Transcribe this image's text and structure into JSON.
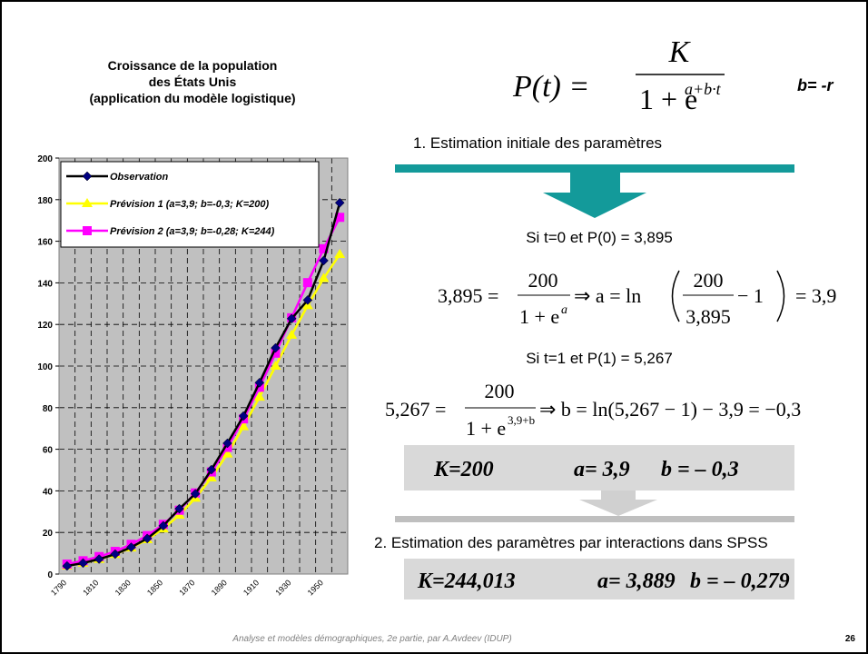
{
  "chart_data": {
    "type": "line",
    "title": [
      "Croissance de la population",
      "des États Unis",
      "(application du modèle logistique)"
    ],
    "categories": [
      "1790",
      null,
      "1810",
      null,
      "1830",
      null,
      "1850",
      null,
      "1870",
      null,
      "1890",
      null,
      "1910",
      null,
      "1930",
      null,
      "1950",
      null
    ],
    "series": [
      {
        "name": "Observation",
        "color": "#000080",
        "line_color": "#000000",
        "marker": "diamond",
        "values": [
          3.9,
          5.3,
          7.2,
          9.6,
          12.9,
          17.1,
          23.2,
          31.4,
          38.6,
          50.2,
          62.9,
          76.0,
          92.0,
          108.7,
          122.8,
          131.7,
          150.7,
          178.5
        ]
      },
      {
        "name": "Prévision 1 (a=3,9; b=-0,3; K=200)",
        "color": "#ffff00",
        "line_color": "#ffff00",
        "marker": "triangle",
        "values": [
          4.0,
          5.3,
          7.1,
          9.5,
          12.6,
          16.6,
          21.8,
          28.4,
          36.5,
          46.3,
          57.8,
          70.9,
          85.1,
          100.0,
          114.9,
          129.1,
          142.2,
          153.7
        ]
      },
      {
        "name": "Prévision 2 (a=3,9; b=-0,28; K=244)",
        "color": "#ff00ff",
        "line_color": "#ff00ff",
        "marker": "square",
        "values": [
          4.8,
          6.4,
          8.4,
          10.9,
          14.3,
          18.5,
          23.9,
          30.7,
          39.0,
          49.1,
          60.9,
          74.6,
          89.8,
          106.2,
          123.2,
          140.1,
          156.4,
          171.5
        ]
      }
    ],
    "ylim": [
      0,
      200
    ],
    "yticks": [
      0,
      20,
      40,
      60,
      80,
      100,
      120,
      140,
      160,
      180,
      200
    ],
    "grid": true,
    "plot_background": "#c0c0c0",
    "legend": "top-left"
  },
  "formulas": {
    "logistic": {
      "lhs": "P(t) =",
      "num": "K",
      "den": "1 + e",
      "den_exp": "a+b·t",
      "note": "b= -r"
    },
    "step1": "1. Estimation initiale des paramètres",
    "cond0": "Si t=0 et P(0) = 3,895",
    "eq_a": {
      "lhs": "3,895 =",
      "num": "200",
      "den": "1 + e",
      "den_exp": "a",
      "mid": "⇒ a = ln",
      "inner_num": "200",
      "inner_den": "3,895",
      "inner_rest": "− 1",
      "rhs": "= 3,9"
    },
    "cond1": "Si t=1 et P(1) = 5,267",
    "eq_b": {
      "lhs": "5,267 =",
      "num": "200",
      "den": "1 + e",
      "den_exp": "3,9+b",
      "rhs": "⇒ b = ln(5,267 − 1) − 3,9 = −0,3"
    },
    "result1": [
      "K=200",
      "a= 3,9",
      "b =  – 0,3"
    ],
    "step2": "2. Estimation des paramètres par interactions dans SPSS",
    "result2": [
      "K=244,013",
      "a= 3,889",
      "b =  – 0,279"
    ]
  },
  "footer": {
    "text": "Analyse et modèles démographiques, 2e partie, par A.Avdeev (IDUP)",
    "page": "26"
  }
}
